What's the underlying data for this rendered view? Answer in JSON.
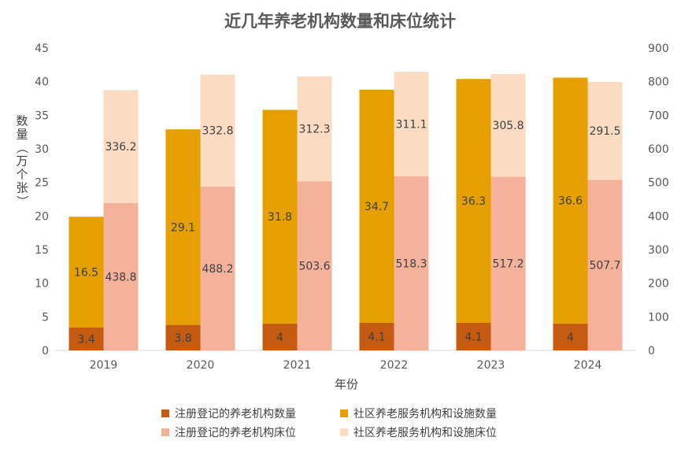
{
  "chart_data": {
    "type": "bar",
    "title": "近几年养老机构数量和床位统计",
    "xlabel": "年份",
    "ylabel": "数量（万个张）",
    "categories": [
      "2019",
      "2020",
      "2021",
      "2022",
      "2023",
      "2024"
    ],
    "ylim": [
      0,
      45
    ],
    "y2lim": [
      0,
      900
    ],
    "yticks": [
      "0",
      "5",
      "10",
      "15",
      "20",
      "25",
      "30",
      "35",
      "40",
      "45"
    ],
    "y2ticks": [
      "0",
      "100",
      "200",
      "300",
      "400",
      "500",
      "600",
      "700",
      "800",
      "900"
    ],
    "series": [
      {
        "name": "注册登记的养老机构数量",
        "axis": "left",
        "stack": "count",
        "color": "#c55a11",
        "values": [
          3.4,
          3.8,
          4,
          4.1,
          4.1,
          4
        ],
        "labels": [
          "3.4",
          "3.8",
          "4",
          "4.1",
          "4.1",
          "4"
        ]
      },
      {
        "name": "社区养老服务机构和设施数量",
        "axis": "left",
        "stack": "count",
        "color": "#e5a000",
        "values": [
          16.5,
          29.1,
          31.8,
          34.7,
          36.3,
          36.6
        ],
        "labels": [
          "16.5",
          "29.1",
          "31.8",
          "34.7",
          "36.3",
          "36.6"
        ]
      },
      {
        "name": "注册登记的养老机构床位",
        "axis": "right",
        "stack": "beds",
        "color": "#f4b29b",
        "values": [
          438.8,
          488.2,
          503.6,
          518.3,
          517.2,
          507.7
        ],
        "labels": [
          "438.8",
          "488.2",
          "503.6",
          "518.3",
          "517.2",
          "507.7"
        ]
      },
      {
        "name": "社区养老服务机构和设施床位",
        "axis": "right",
        "stack": "beds",
        "color": "#fbdcc2",
        "values": [
          336.2,
          332.8,
          312.3,
          311.1,
          305.8,
          291.5
        ],
        "labels": [
          "336.2",
          "332.8",
          "312.3",
          "311.1",
          "305.8",
          "291.5"
        ]
      }
    ],
    "grid": false,
    "legend_position": "bottom",
    "legend_rows": [
      [
        0,
        1
      ],
      [
        2,
        3
      ]
    ]
  }
}
